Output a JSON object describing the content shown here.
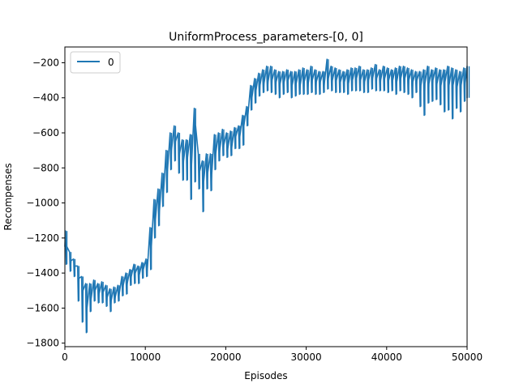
{
  "chart_data": {
    "type": "line",
    "title": "UniformProcess_parameters-[0, 0]",
    "xlabel": "Episodes",
    "ylabel": "Recompenses",
    "xlim": [
      0,
      50000
    ],
    "ylim": [
      -1820,
      -110
    ],
    "x_ticks": [
      0,
      10000,
      20000,
      30000,
      40000,
      50000
    ],
    "x_tick_labels": [
      "0",
      "10000",
      "20000",
      "30000",
      "40000",
      "50000"
    ],
    "y_ticks": [
      -1800,
      -1600,
      -1400,
      -1200,
      -1000,
      -800,
      -600,
      -400,
      -200
    ],
    "y_tick_labels": [
      "−1800",
      "−1600",
      "−1400",
      "−1200",
      "−1000",
      "−800",
      "−600",
      "−400",
      "−200"
    ],
    "grid": false,
    "legend": {
      "placement": "upper-left",
      "entries": [
        "0"
      ]
    },
    "colors": {
      "line": "#1f77b4",
      "axes": "#000000",
      "background": "#ffffff"
    },
    "series": [
      {
        "name": "0",
        "x": [
          0,
          500,
          1000,
          1500,
          2000,
          2500,
          3000,
          3500,
          4000,
          4500,
          5000,
          5500,
          6000,
          6500,
          7000,
          7500,
          8000,
          8500,
          9000,
          9500,
          10000,
          10500,
          11000,
          11500,
          12000,
          12500,
          13000,
          13500,
          14000,
          14500,
          15000,
          15500,
          16000,
          16500,
          17000,
          17500,
          18000,
          18500,
          19000,
          19500,
          20000,
          20500,
          21000,
          21500,
          22000,
          22500,
          23000,
          23500,
          24000,
          24500,
          25000,
          25500,
          26000,
          26500,
          27000,
          27500,
          28000,
          28500,
          29000,
          29500,
          30000,
          30500,
          31000,
          31500,
          32000,
          32500,
          33000,
          33500,
          34000,
          34500,
          35000,
          35500,
          36000,
          36500,
          37000,
          37500,
          38000,
          38500,
          39000,
          39500,
          40000,
          40500,
          41000,
          41500,
          42000,
          42500,
          43000,
          43500,
          44000,
          44500,
          45000,
          45500,
          46000,
          46500,
          47000,
          47500,
          48000,
          48500,
          49000,
          49500,
          50000
        ],
        "values": [
          -1250,
          -1330,
          -1360,
          -1430,
          -1500,
          -1600,
          -1550,
          -1500,
          -1520,
          -1510,
          -1540,
          -1560,
          -1540,
          -1520,
          -1470,
          -1460,
          -1420,
          -1400,
          -1410,
          -1380,
          -1380,
          -1250,
          -1100,
          -1050,
          -950,
          -820,
          -700,
          -650,
          -720,
          -760,
          -740,
          -780,
          -560,
          -820,
          -880,
          -830,
          -840,
          -720,
          -700,
          -670,
          -690,
          -680,
          -620,
          -620,
          -560,
          -500,
          -400,
          -360,
          -330,
          -320,
          -310,
          -300,
          -310,
          -320,
          -310,
          -300,
          -330,
          -320,
          -330,
          -310,
          -320,
          -300,
          -310,
          -310,
          -320,
          -290,
          -300,
          -300,
          -310,
          -310,
          -320,
          -300,
          -290,
          -300,
          -310,
          -300,
          -290,
          -290,
          -300,
          -290,
          -300,
          -300,
          -310,
          -290,
          -290,
          -300,
          -310,
          -300,
          -330,
          -320,
          -320,
          -300,
          -320,
          -330,
          -310,
          -330,
          -330,
          -340,
          -330,
          -320,
          -310
        ],
        "min": [
          -1350,
          -1390,
          -1420,
          -1560,
          -1680,
          -1740,
          -1620,
          -1560,
          -1570,
          -1570,
          -1590,
          -1620,
          -1570,
          -1560,
          -1530,
          -1520,
          -1470,
          -1460,
          -1460,
          -1430,
          -1420,
          -1380,
          -1200,
          -1130,
          -1020,
          -940,
          -810,
          -760,
          -830,
          -870,
          -870,
          -980,
          -880,
          -920,
          -1050,
          -920,
          -930,
          -810,
          -760,
          -730,
          -740,
          -730,
          -690,
          -690,
          -670,
          -560,
          -470,
          -430,
          -390,
          -370,
          -360,
          -370,
          -380,
          -400,
          -380,
          -370,
          -400,
          -390,
          -380,
          -380,
          -380,
          -370,
          -380,
          -380,
          -370,
          -350,
          -360,
          -370,
          -370,
          -370,
          -380,
          -360,
          -360,
          -360,
          -370,
          -370,
          -350,
          -360,
          -360,
          -360,
          -370,
          -360,
          -380,
          -360,
          -370,
          -380,
          -400,
          -370,
          -450,
          -500,
          -430,
          -420,
          -410,
          -440,
          -480,
          -470,
          -520,
          -460,
          -480,
          -420,
          -400
        ],
        "max": [
          -1160,
          -1280,
          -1320,
          -1360,
          -1420,
          -1460,
          -1460,
          -1440,
          -1460,
          -1450,
          -1470,
          -1490,
          -1480,
          -1470,
          -1420,
          -1400,
          -1380,
          -1350,
          -1360,
          -1340,
          -1320,
          -1140,
          -980,
          -920,
          -830,
          -700,
          -600,
          -560,
          -600,
          -640,
          -640,
          -610,
          -460,
          -720,
          -760,
          -720,
          -720,
          -610,
          -600,
          -580,
          -600,
          -590,
          -570,
          -560,
          -500,
          -450,
          -330,
          -290,
          -260,
          -240,
          -220,
          -220,
          -240,
          -250,
          -250,
          -240,
          -250,
          -250,
          -240,
          -230,
          -240,
          -220,
          -240,
          -250,
          -250,
          -180,
          -220,
          -230,
          -240,
          -250,
          -240,
          -230,
          -230,
          -220,
          -240,
          -240,
          -230,
          -210,
          -240,
          -220,
          -230,
          -240,
          -230,
          -220,
          -220,
          -230,
          -240,
          -250,
          -250,
          -240,
          -220,
          -240,
          -230,
          -240,
          -240,
          -220,
          -230,
          -240,
          -250,
          -230,
          -220
        ]
      }
    ]
  }
}
